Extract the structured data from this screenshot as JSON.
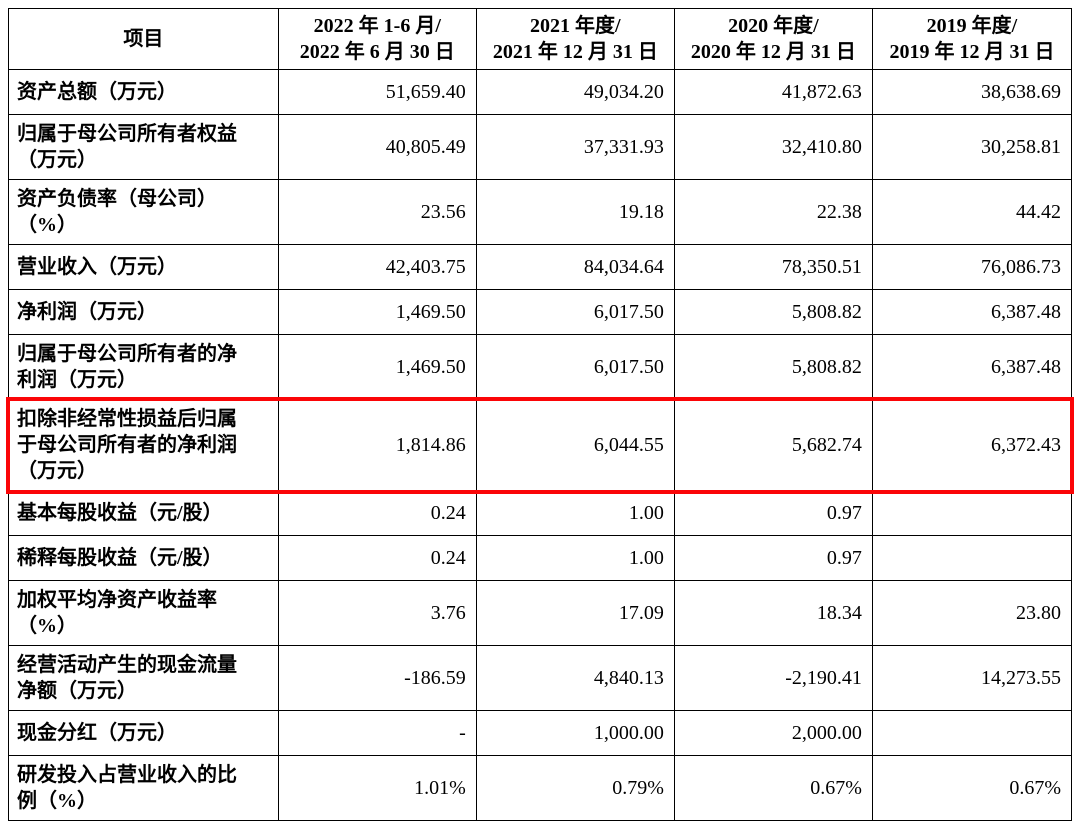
{
  "highlight_color": "#fb0507",
  "table": {
    "header": {
      "item_label": "项目",
      "columns": [
        {
          "line1": "2022 年 1-6 月/",
          "line2": "2022 年 6 月 30 日"
        },
        {
          "line1": "2021 年度/",
          "line2": "2021 年 12 月 31 日"
        },
        {
          "line1": "2020 年度/",
          "line2": "2020 年 12 月 31 日"
        },
        {
          "line1": "2019 年度/",
          "line2": "2019 年 12 月 31 日"
        }
      ]
    },
    "rows": [
      {
        "item": "资产总额（万元）",
        "values": [
          "51,659.40",
          "49,034.20",
          "41,872.63",
          "38,638.69"
        ],
        "highlight": false
      },
      {
        "item": "归属于母公司所有者权益\n（万元）",
        "values": [
          "40,805.49",
          "37,331.93",
          "32,410.80",
          "30,258.81"
        ],
        "highlight": false
      },
      {
        "item": "资产负债率（母公司）\n（%）",
        "values": [
          "23.56",
          "19.18",
          "22.38",
          "44.42"
        ],
        "highlight": false
      },
      {
        "item": "营业收入（万元）",
        "values": [
          "42,403.75",
          "84,034.64",
          "78,350.51",
          "76,086.73"
        ],
        "highlight": false
      },
      {
        "item": "净利润（万元）",
        "values": [
          "1,469.50",
          "6,017.50",
          "5,808.82",
          "6,387.48"
        ],
        "highlight": false
      },
      {
        "item": "归属于母公司所有者的净\n利润（万元）",
        "values": [
          "1,469.50",
          "6,017.50",
          "5,808.82",
          "6,387.48"
        ],
        "highlight": false
      },
      {
        "item": "扣除非经常性损益后归属\n于母公司所有者的净利润\n（万元）",
        "values": [
          "1,814.86",
          "6,044.55",
          "5,682.74",
          "6,372.43"
        ],
        "highlight": true
      },
      {
        "item": "基本每股收益（元/股）",
        "values": [
          "0.24",
          "1.00",
          "0.97",
          ""
        ],
        "highlight": false
      },
      {
        "item": "稀释每股收益（元/股）",
        "values": [
          "0.24",
          "1.00",
          "0.97",
          ""
        ],
        "highlight": false
      },
      {
        "item": "加权平均净资产收益率\n（%）",
        "values": [
          "3.76",
          "17.09",
          "18.34",
          "23.80"
        ],
        "highlight": false
      },
      {
        "item": "经营活动产生的现金流量\n净额（万元）",
        "values": [
          "-186.59",
          "4,840.13",
          "-2,190.41",
          "14,273.55"
        ],
        "highlight": false
      },
      {
        "item": "现金分红（万元）",
        "values": [
          "-",
          "1,000.00",
          "2,000.00",
          ""
        ],
        "highlight": false
      },
      {
        "item": "研发投入占营业收入的比\n例（%）",
        "values": [
          "1.01%",
          "0.79%",
          "0.67%",
          "0.67%"
        ],
        "highlight": false
      }
    ]
  }
}
